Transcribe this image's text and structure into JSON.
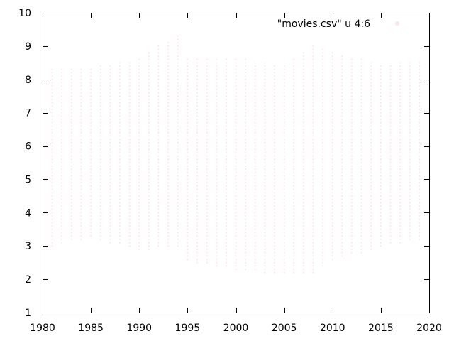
{
  "chart_data": {
    "type": "scatter",
    "title": "",
    "xlabel": "",
    "ylabel": "",
    "xlim": [
      1980,
      2020
    ],
    "ylim": [
      1,
      10
    ],
    "x_ticks": [
      "1980",
      "1985",
      "1990",
      "1995",
      "2000",
      "2005",
      "2010",
      "2015",
      "2020"
    ],
    "y_ticks": [
      "1",
      "2",
      "3",
      "4",
      "5",
      "6",
      "7",
      "8",
      "9",
      "10"
    ],
    "grid": false,
    "legend_position": "top-right",
    "series": [
      {
        "name": "\"movies.csv\" u 4:6",
        "color": "#fbe4e6",
        "year_range": [
          1981,
          2019
        ],
        "rating_step": 0.1,
        "approx_rating_spread_by_year": [
          {
            "year": 1981,
            "min": 3.0,
            "max": 8.3
          },
          {
            "year": 1985,
            "min": 3.3,
            "max": 8.3
          },
          {
            "year": 1990,
            "min": 2.9,
            "max": 8.6
          },
          {
            "year": 1994,
            "min": 3.0,
            "max": 9.3
          },
          {
            "year": 1995,
            "min": 2.6,
            "max": 8.6
          },
          {
            "year": 2000,
            "min": 2.3,
            "max": 8.6
          },
          {
            "year": 2005,
            "min": 2.2,
            "max": 8.4
          },
          {
            "year": 2008,
            "min": 2.2,
            "max": 9.0
          },
          {
            "year": 2010,
            "min": 2.6,
            "max": 8.8
          },
          {
            "year": 2015,
            "min": 3.0,
            "max": 8.4
          },
          {
            "year": 2019,
            "min": 3.2,
            "max": 8.5
          }
        ]
      }
    ]
  }
}
